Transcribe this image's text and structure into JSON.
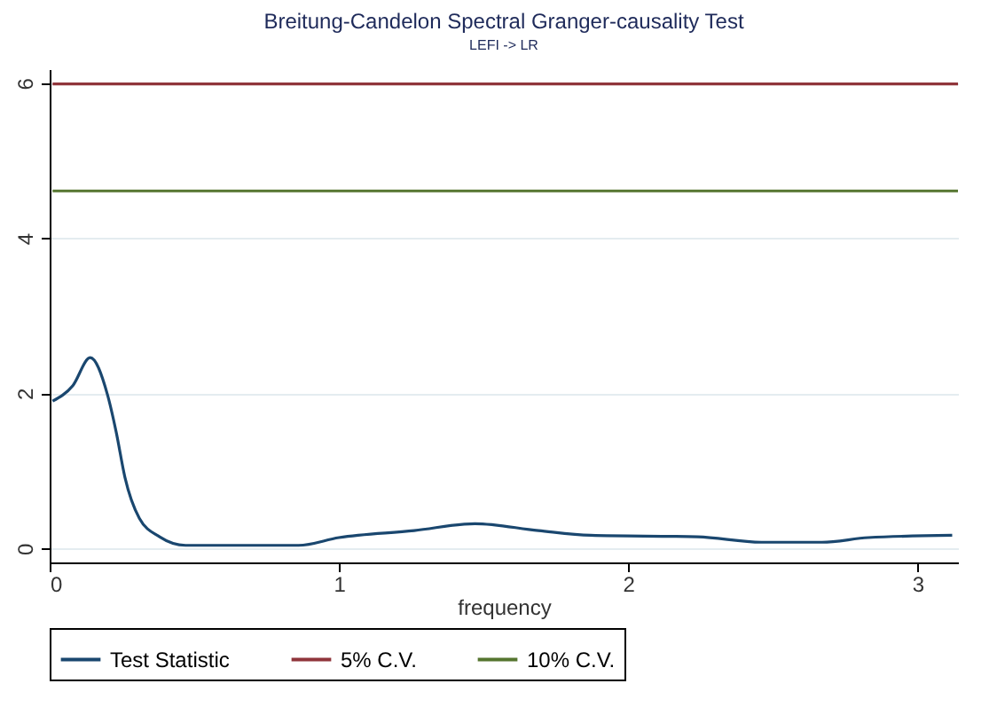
{
  "chart_data": {
    "type": "line",
    "title": "Breitung-Candelon Spectral Granger-causality Test",
    "subtitle": "LEFI -> LR",
    "xlabel": "frequency",
    "xlim": [
      0,
      3.14
    ],
    "xticks": [
      0,
      1,
      2,
      3
    ],
    "ylim": [
      -0.18,
      6.18
    ],
    "yticks": [
      0,
      2,
      4,
      6
    ],
    "grid": "y",
    "legend": "bottom",
    "line_style": "solid",
    "series": [
      {
        "name": "Test Statistic",
        "color": "#1a476f",
        "x": [
          0.01,
          0.08,
          0.14,
          0.2,
          0.23,
          0.26,
          0.31,
          0.38,
          0.47,
          0.86,
          1.0,
          1.26,
          1.47,
          1.69,
          1.87,
          2.24,
          2.46,
          2.67,
          2.83,
          3.12
        ],
        "values": [
          1.9,
          2.1,
          2.46,
          1.98,
          1.5,
          0.92,
          0.39,
          0.15,
          0.04,
          0.04,
          0.14,
          0.23,
          0.32,
          0.23,
          0.17,
          0.15,
          0.08,
          0.08,
          0.14,
          0.17
        ]
      },
      {
        "name": "5% C.V.",
        "color": "#90353b",
        "x": [
          0.01,
          3.14
        ],
        "values": [
          5.99,
          5.99
        ]
      },
      {
        "name": "10% C.V.",
        "color": "#55752f",
        "x": [
          0.01,
          3.14
        ],
        "values": [
          4.61,
          4.61
        ]
      }
    ]
  }
}
